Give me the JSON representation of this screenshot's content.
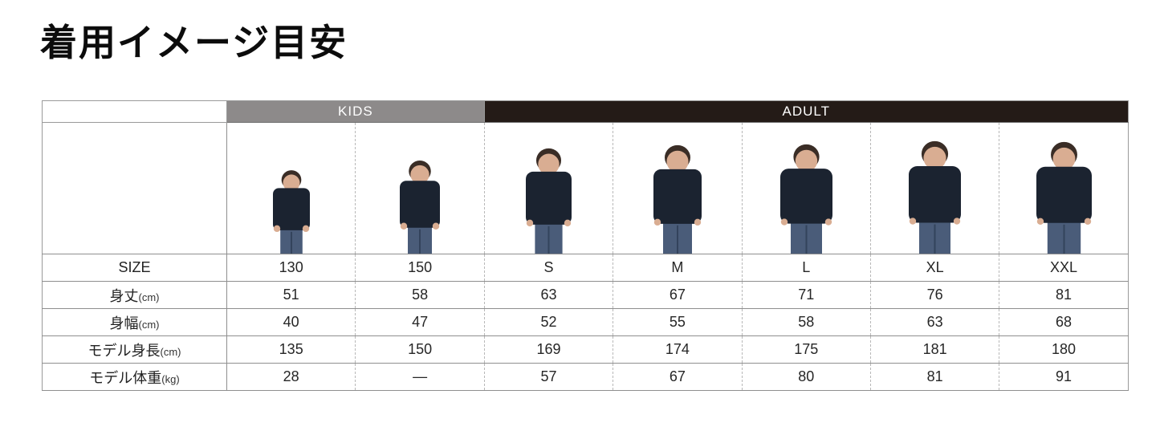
{
  "page": {
    "title": "着用イメージ目安",
    "background": "#ffffff"
  },
  "size_chart": {
    "group_headers": [
      {
        "label": "KIDS",
        "colspan": 2,
        "bg": "#8d8a8a",
        "text_color": "#ffffff"
      },
      {
        "label": "ADULT",
        "colspan": 5,
        "bg": "#241b17",
        "text_color": "#ffffff"
      }
    ],
    "columns": [
      "130",
      "150",
      "S",
      "M",
      "L",
      "XL",
      "XXL"
    ],
    "figures": [
      {
        "name": "model-photo-130",
        "alt": "child model wearing navy sweatshirt"
      },
      {
        "name": "model-photo-150",
        "alt": "child model wearing navy sweatshirt"
      },
      {
        "name": "model-photo-S",
        "alt": "adult model wearing navy sweatshirt"
      },
      {
        "name": "model-photo-M",
        "alt": "adult model wearing navy sweatshirt"
      },
      {
        "name": "model-photo-L",
        "alt": "adult model wearing navy sweatshirt"
      },
      {
        "name": "model-photo-XL",
        "alt": "adult model wearing navy sweatshirt"
      },
      {
        "name": "model-photo-XXL",
        "alt": "adult model wearing navy sweatshirt"
      }
    ],
    "photo_colors": {
      "sweatshirt": "#1b2330",
      "jeans": "#4a5c79",
      "jeans_seam": "#33435c",
      "skin": "#d9ad92",
      "hair": "#3a2d26"
    },
    "rows": [
      {
        "label": "SIZE",
        "unit": "",
        "values": [
          "130",
          "150",
          "S",
          "M",
          "L",
          "XL",
          "XXL"
        ]
      },
      {
        "label": "身丈",
        "unit": "(cm)",
        "values": [
          "51",
          "58",
          "63",
          "67",
          "71",
          "76",
          "81"
        ]
      },
      {
        "label": "身幅",
        "unit": "(cm)",
        "values": [
          "40",
          "47",
          "52",
          "55",
          "58",
          "63",
          "68"
        ]
      },
      {
        "label": "モデル身長",
        "unit": "(cm)",
        "values": [
          "135",
          "150",
          "169",
          "174",
          "175",
          "181",
          "180"
        ]
      },
      {
        "label": "モデル体重",
        "unit": "(kg)",
        "values": [
          "28",
          "—",
          "57",
          "67",
          "80",
          "81",
          "91"
        ]
      }
    ]
  },
  "chart_data": {
    "type": "table",
    "title": "着用イメージ目安",
    "column_groups": [
      {
        "label": "KIDS",
        "columns": [
          "130",
          "150"
        ]
      },
      {
        "label": "ADULT",
        "columns": [
          "S",
          "M",
          "L",
          "XL",
          "XXL"
        ]
      }
    ],
    "columns": [
      "130",
      "150",
      "S",
      "M",
      "L",
      "XL",
      "XXL"
    ],
    "rows": [
      {
        "label": "SIZE",
        "values": [
          "130",
          "150",
          "S",
          "M",
          "L",
          "XL",
          "XXL"
        ]
      },
      {
        "label": "身丈(cm)",
        "values": [
          51,
          58,
          63,
          67,
          71,
          76,
          81
        ]
      },
      {
        "label": "身幅(cm)",
        "values": [
          40,
          47,
          52,
          55,
          58,
          63,
          68
        ]
      },
      {
        "label": "モデル身長(cm)",
        "values": [
          135,
          150,
          169,
          174,
          175,
          181,
          180
        ]
      },
      {
        "label": "モデル体重(kg)",
        "values": [
          28,
          "—",
          57,
          67,
          80,
          81,
          91
        ]
      }
    ]
  }
}
